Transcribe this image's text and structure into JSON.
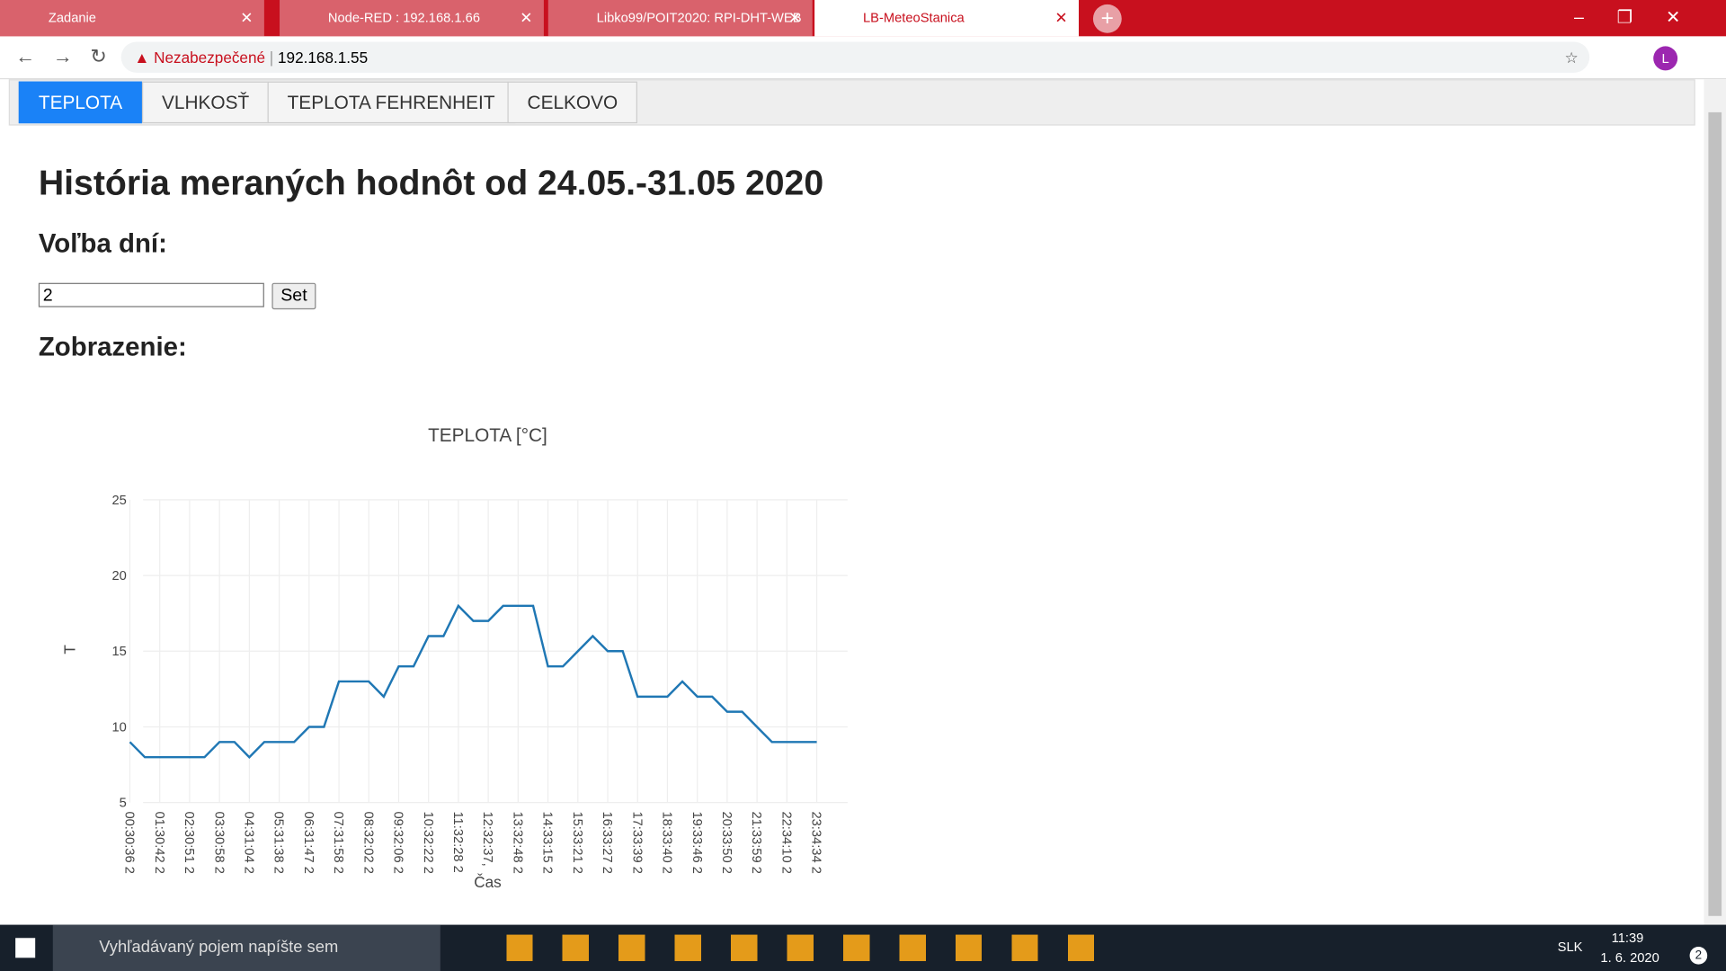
{
  "browser": {
    "tabs": [
      "Zadanie",
      "Node-RED : 192.168.1.66",
      "Libko99/POIT2020: RPI-DHT-WEB",
      "LB-MeteoStanica"
    ],
    "warning": "Nezabezpečené",
    "url": "192.168.1.55",
    "avatar": "L"
  },
  "nav": [
    "TEPLOTA",
    "VLHKOSŤ",
    "TEPLOTA FEHRENHEIT",
    "CELKOVO"
  ],
  "heading": "História meraných hodnôt od 24.05.-31.05 2020",
  "days_label": "Voľba dní:",
  "input_value": "2",
  "button": "Set",
  "display_label": "Zobrazenie:",
  "chart_data": {
    "type": "line",
    "title": "TEPLOTA [°C]",
    "x_label": "Čas",
    "y_label": "T",
    "color": "#1f77b4",
    "categories": [
      "00:30:36 2",
      null,
      "01:30:42 2",
      null,
      "02:30:51 2",
      null,
      "03:30:58 2",
      null,
      "04:31:04 2",
      null,
      "05:31:38 2",
      null,
      "06:31:47 2",
      null,
      "07:31:58 2",
      null,
      "08:32:02 2",
      null,
      "09:32:06 2",
      null,
      "10:32:22 2",
      null,
      "11:32:28 2",
      null,
      "12:32:37,",
      null,
      "13:32:48 2",
      null,
      "14:33:15 2",
      null,
      "15:33:21 2",
      null,
      "16:33:27 2",
      null,
      "17:33:39 2",
      null,
      "18:33:40 2",
      null,
      "19:33:46 2",
      null,
      "20:33:50 2",
      null,
      "21:33:59 2",
      null,
      "22:34:10 2",
      null,
      "23:34:34 2"
    ],
    "values": [
      9,
      8,
      8,
      8,
      8,
      8,
      9,
      9,
      8,
      9,
      9,
      9,
      10,
      10,
      13,
      13,
      13,
      12,
      14,
      14,
      16,
      16,
      18,
      17,
      17,
      18,
      18,
      18,
      14,
      14,
      15,
      16,
      15,
      15,
      12,
      12,
      12,
      13,
      12,
      12,
      11,
      11,
      10,
      9,
      9,
      9,
      9
    ],
    "ylim": [
      5,
      25
    ],
    "yticks": [
      5,
      10,
      15,
      20,
      25
    ],
    "grid": true
  },
  "taskbar": {
    "search": "Vyhľadávaný pojem napíšte sem",
    "lang": "SLK",
    "time": "11:39",
    "date": "1. 6. 2020",
    "notifications": "2"
  }
}
